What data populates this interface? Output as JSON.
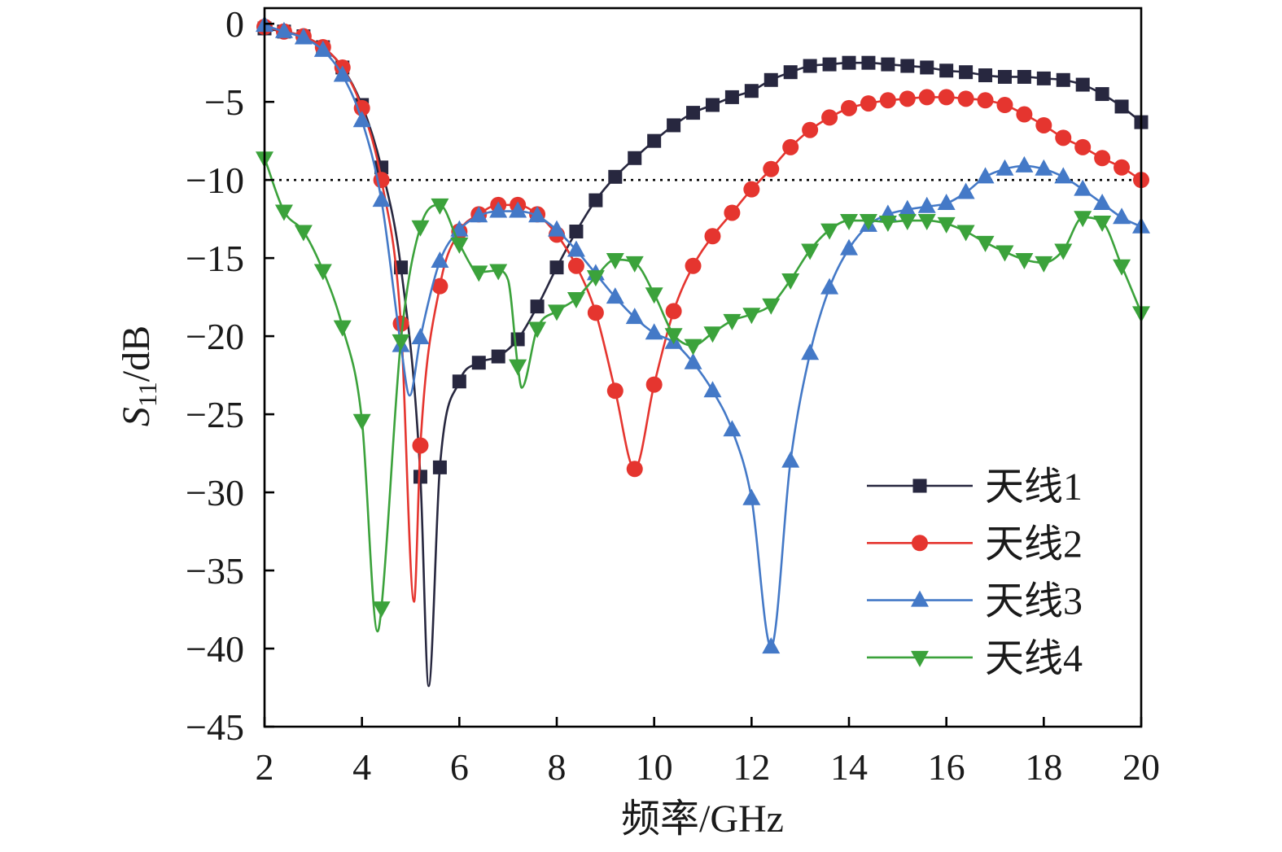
{
  "chart_data": {
    "type": "line",
    "xlabel": "频率/GHz",
    "ylabel": {
      "symbol": "S",
      "subscript": "11",
      "unit": "/dB"
    },
    "xlim": [
      2,
      20
    ],
    "ylim": [
      -45,
      1
    ],
    "xticks": [
      2,
      4,
      6,
      8,
      10,
      12,
      14,
      16,
      18,
      20
    ],
    "xtick_labels": [
      "2",
      "4",
      "6",
      "8",
      "10",
      "12",
      "14",
      "16",
      "18",
      "20"
    ],
    "yticks": [
      0,
      -5,
      -10,
      -15,
      -20,
      -25,
      -30,
      -35,
      -40,
      -45
    ],
    "ytick_labels": [
      "0",
      "−5",
      "−10",
      "−15",
      "−20",
      "−25",
      "−30",
      "−35",
      "−40",
      "−45"
    ],
    "grid": false,
    "reference_line": {
      "y": -10,
      "style": "dotted",
      "color": "#000000"
    },
    "legend": {
      "position": "lower-right"
    },
    "x": [
      2.0,
      2.4,
      2.8,
      3.2,
      3.6,
      4.0,
      4.4,
      4.8,
      5.2,
      5.6,
      6.0,
      6.4,
      6.8,
      7.2,
      7.6,
      8.0,
      8.4,
      8.8,
      9.2,
      9.6,
      10.0,
      10.4,
      10.8,
      11.2,
      11.6,
      12.0,
      12.4,
      12.8,
      13.2,
      13.6,
      14.0,
      14.4,
      14.8,
      15.2,
      15.6,
      16.0,
      16.4,
      16.8,
      17.2,
      17.6,
      18.0,
      18.4,
      18.8,
      19.2,
      19.6,
      20.0
    ],
    "series": [
      {
        "name": "天线1",
        "color": "#27273f",
        "marker": "square",
        "y": [
          -0.3,
          -0.5,
          -0.8,
          -1.5,
          -2.8,
          -5.2,
          -9.2,
          -15.6,
          -29.0,
          -28.4,
          -22.9,
          -21.7,
          -21.3,
          -20.2,
          -18.1,
          -15.6,
          -13.3,
          -11.3,
          -9.8,
          -8.6,
          -7.5,
          -6.5,
          -5.7,
          -5.2,
          -4.7,
          -4.3,
          -3.6,
          -3.1,
          -2.7,
          -2.6,
          -2.5,
          -2.5,
          -2.6,
          -2.7,
          -2.8,
          -3.0,
          -3.1,
          -3.3,
          -3.4,
          -3.4,
          -3.5,
          -3.6,
          -3.9,
          -4.5,
          -5.3,
          -6.3
        ],
        "extra_curve_points": [
          [
            5.37,
            -42.4
          ]
        ]
      },
      {
        "name": "天线2",
        "color": "#e5352f",
        "marker": "circle",
        "y": [
          -0.2,
          -0.5,
          -0.8,
          -1.5,
          -2.8,
          -5.4,
          -10.0,
          -19.2,
          -27.0,
          -16.8,
          -13.3,
          -12.2,
          -11.6,
          -11.6,
          -12.2,
          -13.5,
          -15.5,
          -18.5,
          -23.5,
          -28.5,
          -23.1,
          -18.4,
          -15.5,
          -13.6,
          -12.1,
          -10.6,
          -9.3,
          -7.9,
          -6.8,
          -6.0,
          -5.4,
          -5.1,
          -4.9,
          -4.8,
          -4.7,
          -4.7,
          -4.8,
          -4.9,
          -5.2,
          -5.8,
          -6.5,
          -7.3,
          -7.9,
          -8.6,
          -9.2,
          -10.0
        ],
        "extra_curve_points": [
          [
            5.07,
            -37.0
          ]
        ]
      },
      {
        "name": "天线3",
        "color": "#4479c7",
        "marker": "triangle-up",
        "y": [
          -0.1,
          -0.5,
          -0.9,
          -1.7,
          -3.3,
          -6.2,
          -11.3,
          -20.6,
          -20.1,
          -15.2,
          -13.2,
          -12.3,
          -12.0,
          -12.0,
          -12.3,
          -13.2,
          -14.5,
          -16.0,
          -17.5,
          -18.8,
          -19.8,
          -20.4,
          -21.7,
          -23.5,
          -26.0,
          -30.4,
          -39.9,
          -28.0,
          -21.1,
          -16.9,
          -14.4,
          -12.9,
          -12.2,
          -11.9,
          -11.7,
          -11.5,
          -10.8,
          -9.8,
          -9.3,
          -9.1,
          -9.3,
          -9.8,
          -10.6,
          -11.5,
          -12.4,
          -13.0
        ],
        "extra_curve_points": [
          [
            4.98,
            -23.8
          ]
        ]
      },
      {
        "name": "天线4",
        "color": "#3ba23b",
        "marker": "triangle-down",
        "y": [
          -8.6,
          -12.0,
          -13.3,
          -15.8,
          -19.4,
          -25.4,
          -37.4,
          -20.3,
          -13.0,
          -11.6,
          -14.1,
          -15.9,
          -15.8,
          -21.9,
          -19.5,
          -18.4,
          -17.6,
          -16.2,
          -15.1,
          -15.3,
          -17.3,
          -19.9,
          -20.6,
          -19.8,
          -19.0,
          -18.6,
          -18.0,
          -16.4,
          -14.5,
          -13.2,
          -12.6,
          -12.6,
          -12.7,
          -12.6,
          -12.6,
          -12.8,
          -13.3,
          -14.0,
          -14.6,
          -15.1,
          -15.3,
          -14.5,
          -12.4,
          -12.7,
          -15.5,
          -18.5
        ],
        "extra_curve_points": [
          [
            4.32,
            -38.9
          ],
          [
            7.0,
            -16.4
          ],
          [
            7.28,
            -23.3
          ]
        ]
      }
    ]
  }
}
